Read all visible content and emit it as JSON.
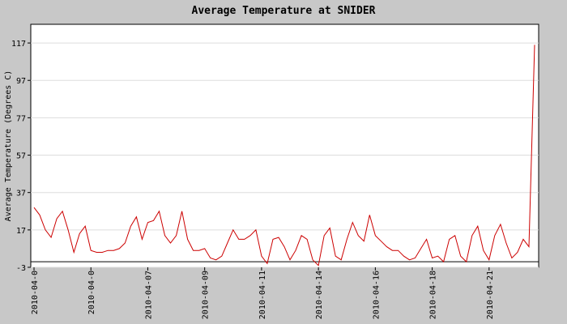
{
  "chart_data": {
    "type": "line",
    "title": "Average Temperature at SNIDER",
    "y_label": "Average Temperature (Degrees C)",
    "categories": [
      "2010-04-0",
      null,
      null,
      null,
      null,
      null,
      null,
      null,
      null,
      null,
      "2010-04-0",
      null,
      null,
      null,
      null,
      null,
      null,
      null,
      null,
      null,
      "2010-04-07",
      null,
      null,
      null,
      null,
      null,
      null,
      null,
      null,
      null,
      "2010-04-09",
      null,
      null,
      null,
      null,
      null,
      null,
      null,
      null,
      null,
      "2010-04-11",
      null,
      null,
      null,
      null,
      null,
      null,
      null,
      null,
      null,
      "2010-04-14",
      null,
      null,
      null,
      null,
      null,
      null,
      null,
      null,
      null,
      "2010-04-16",
      null,
      null,
      null,
      null,
      null,
      null,
      null,
      null,
      null,
      "2010-04-18",
      null,
      null,
      null,
      null,
      null,
      null,
      null,
      null,
      null,
      "2010-04-21",
      null,
      null,
      null,
      null,
      null,
      null,
      null,
      null
    ],
    "series": [
      {
        "name": "Average Temperature",
        "color": "#cc0000",
        "values": [
          29,
          25,
          17,
          13,
          23,
          27,
          17,
          5,
          15,
          19,
          6,
          5,
          5,
          6,
          6,
          7,
          10,
          19,
          24,
          12,
          21,
          22,
          27,
          14,
          10,
          14,
          27,
          12,
          6,
          6,
          7,
          2,
          1,
          3,
          10,
          17,
          12,
          12,
          14,
          17,
          3,
          -1,
          12,
          13,
          8,
          1,
          6,
          14,
          12,
          1,
          -2,
          14,
          18,
          3,
          1,
          12,
          21,
          14,
          11,
          25,
          14,
          11,
          8,
          6,
          6,
          3,
          1,
          2,
          7,
          12,
          2,
          3,
          0,
          12,
          14,
          3,
          0,
          14,
          19,
          6,
          1,
          14,
          20,
          10,
          2,
          5,
          12,
          8,
          116
        ]
      }
    ],
    "ylim": [
      -3,
      127
    ],
    "yticks": [
      -3,
      17,
      37,
      57,
      77,
      97,
      117
    ],
    "grid": true
  }
}
